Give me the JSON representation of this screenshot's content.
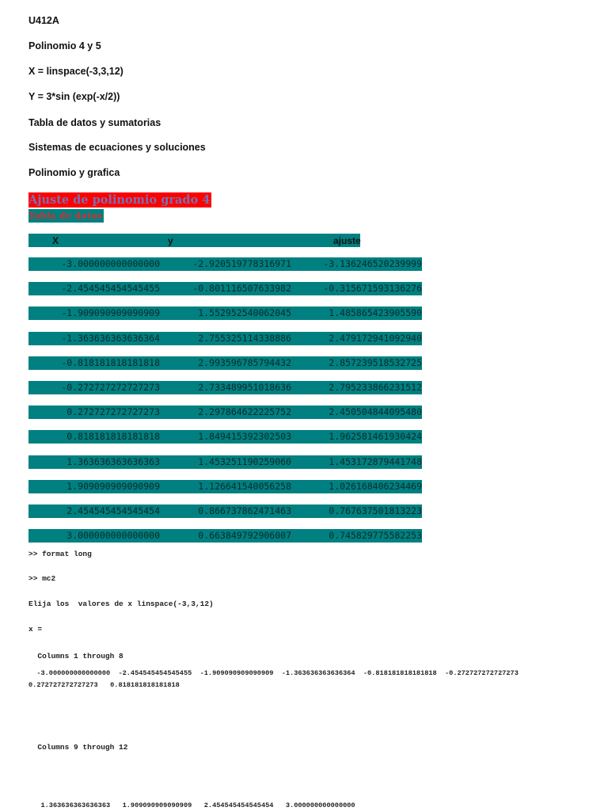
{
  "header_lines": [
    "U412A",
    "Polinomio 4 y 5",
    "X = linspace(-3,3,12)",
    "Y = 3*sin (exp(-x/2))",
    "Tabla de datos y sumatorias",
    "Sistemas de ecuaciones y soluciones",
    "Polinomio y grafica"
  ],
  "section_title": "Ajuste de polinomio  grado 4",
  "subtitle": "Tabla de datos",
  "colors": {
    "title_bg": "#ff0000",
    "table_bg": "#008080"
  },
  "table": {
    "columns": [
      "X",
      "y",
      "ajuste"
    ],
    "rows": [
      [
        "-3.000000000000000",
        "-2.920519778316971",
        "-3.136246520239999"
      ],
      [
        "-2.454545454545455",
        "-0.801116507633982",
        "-0.315671593136276"
      ],
      [
        "-1.909090909090909",
        "1.552952540062045",
        "1.485865423905590"
      ],
      [
        "-1.363636363636364",
        "2.755325114338886",
        "2.479172941092940"
      ],
      [
        "-0.818181818181818",
        "2.993596785794432",
        "2.857239518532725"
      ],
      [
        "-0.272727272727273",
        "2.733489951018636",
        "2.795233866231512"
      ],
      [
        "0.272727272727273",
        "2.297864622225752",
        "2.450504844095480"
      ],
      [
        "0.818181818181818",
        "1.849415392302503",
        "1.962581461930424"
      ],
      [
        "1.363636363636363",
        "1.453251190259060",
        "1.453172879441748"
      ],
      [
        "1.909090909090909",
        "1.126641540056258",
        "1.026168406234469"
      ],
      [
        "2.454545454545454",
        "0.866737862471463",
        "0.767637501813223"
      ],
      [
        "3.000000000000000",
        "0.663849792906007",
        "0.745829775582253"
      ]
    ]
  },
  "console": {
    "lines": [
      ">> format long",
      ">> mc2",
      "Elija los  valores de x linspace(-3,3,12)",
      "x ="
    ],
    "cols1_label": "  Columns 1 through 8",
    "cols1_values_a": "  -3.000000000000000  -2.454545454545455  -1.909090909090909  -1.363636363636364  -0.818181818181818  -0.272727272727273",
    "cols1_values_b": "0.272727272727273   0.818181818181818",
    "cols2_label": "  Columns 9 through 12",
    "cols2_values": "   1.363636363636363   1.909090909090909   2.454545454545454   3.000000000000000"
  }
}
